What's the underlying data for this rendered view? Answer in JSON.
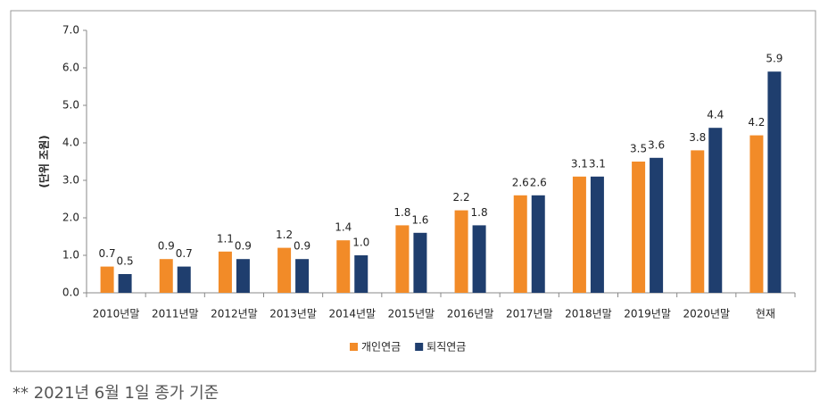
{
  "chart_data": {
    "type": "bar",
    "y_label": "(단위 조원)",
    "categories": [
      "2010년말",
      "2011년말",
      "2012년말",
      "2013년말",
      "2014년말",
      "2015년말",
      "2016년말",
      "2017년말",
      "2018년말",
      "2019년말",
      "2020년말",
      "현재"
    ],
    "series": [
      {
        "name": "개인연금",
        "color": "#f28b28",
        "values": [
          0.7,
          0.9,
          1.1,
          1.2,
          1.4,
          1.8,
          2.2,
          2.6,
          3.1,
          3.5,
          3.8,
          4.2
        ],
        "value_labels": [
          "0.7",
          "0.9",
          "1.1",
          "1.2",
          "1.4",
          "1.8",
          "2.2",
          "2.6",
          "3.1",
          "3.5",
          "3.8",
          "4.2"
        ]
      },
      {
        "name": "퇴직연금",
        "color": "#1f3e6e",
        "values": [
          0.5,
          0.7,
          0.9,
          0.9,
          1.0,
          1.6,
          1.8,
          2.6,
          3.1,
          3.6,
          4.4,
          5.9
        ],
        "value_labels": [
          "0.5",
          "0.7",
          "0.9",
          "0.9",
          "1.0",
          "1.6",
          "1.8",
          "2.6",
          "3.1",
          "3.6",
          "4.4",
          "5.9"
        ]
      }
    ],
    "ylim": [
      0,
      7
    ],
    "yticks": [
      {
        "value": 0,
        "label": "0.0"
      },
      {
        "value": 1,
        "label": "1.0"
      },
      {
        "value": 2,
        "label": "2.0"
      },
      {
        "value": 3,
        "label": "3.0"
      },
      {
        "value": 4,
        "label": "4.0"
      },
      {
        "value": 5,
        "label": "5.0"
      },
      {
        "value": 6,
        "label": "6.0"
      },
      {
        "value": 7,
        "label": "7.0"
      }
    ],
    "grid": false,
    "legend": "bottom",
    "footnote": "** 2021년 6월 1일 종가 기준"
  }
}
